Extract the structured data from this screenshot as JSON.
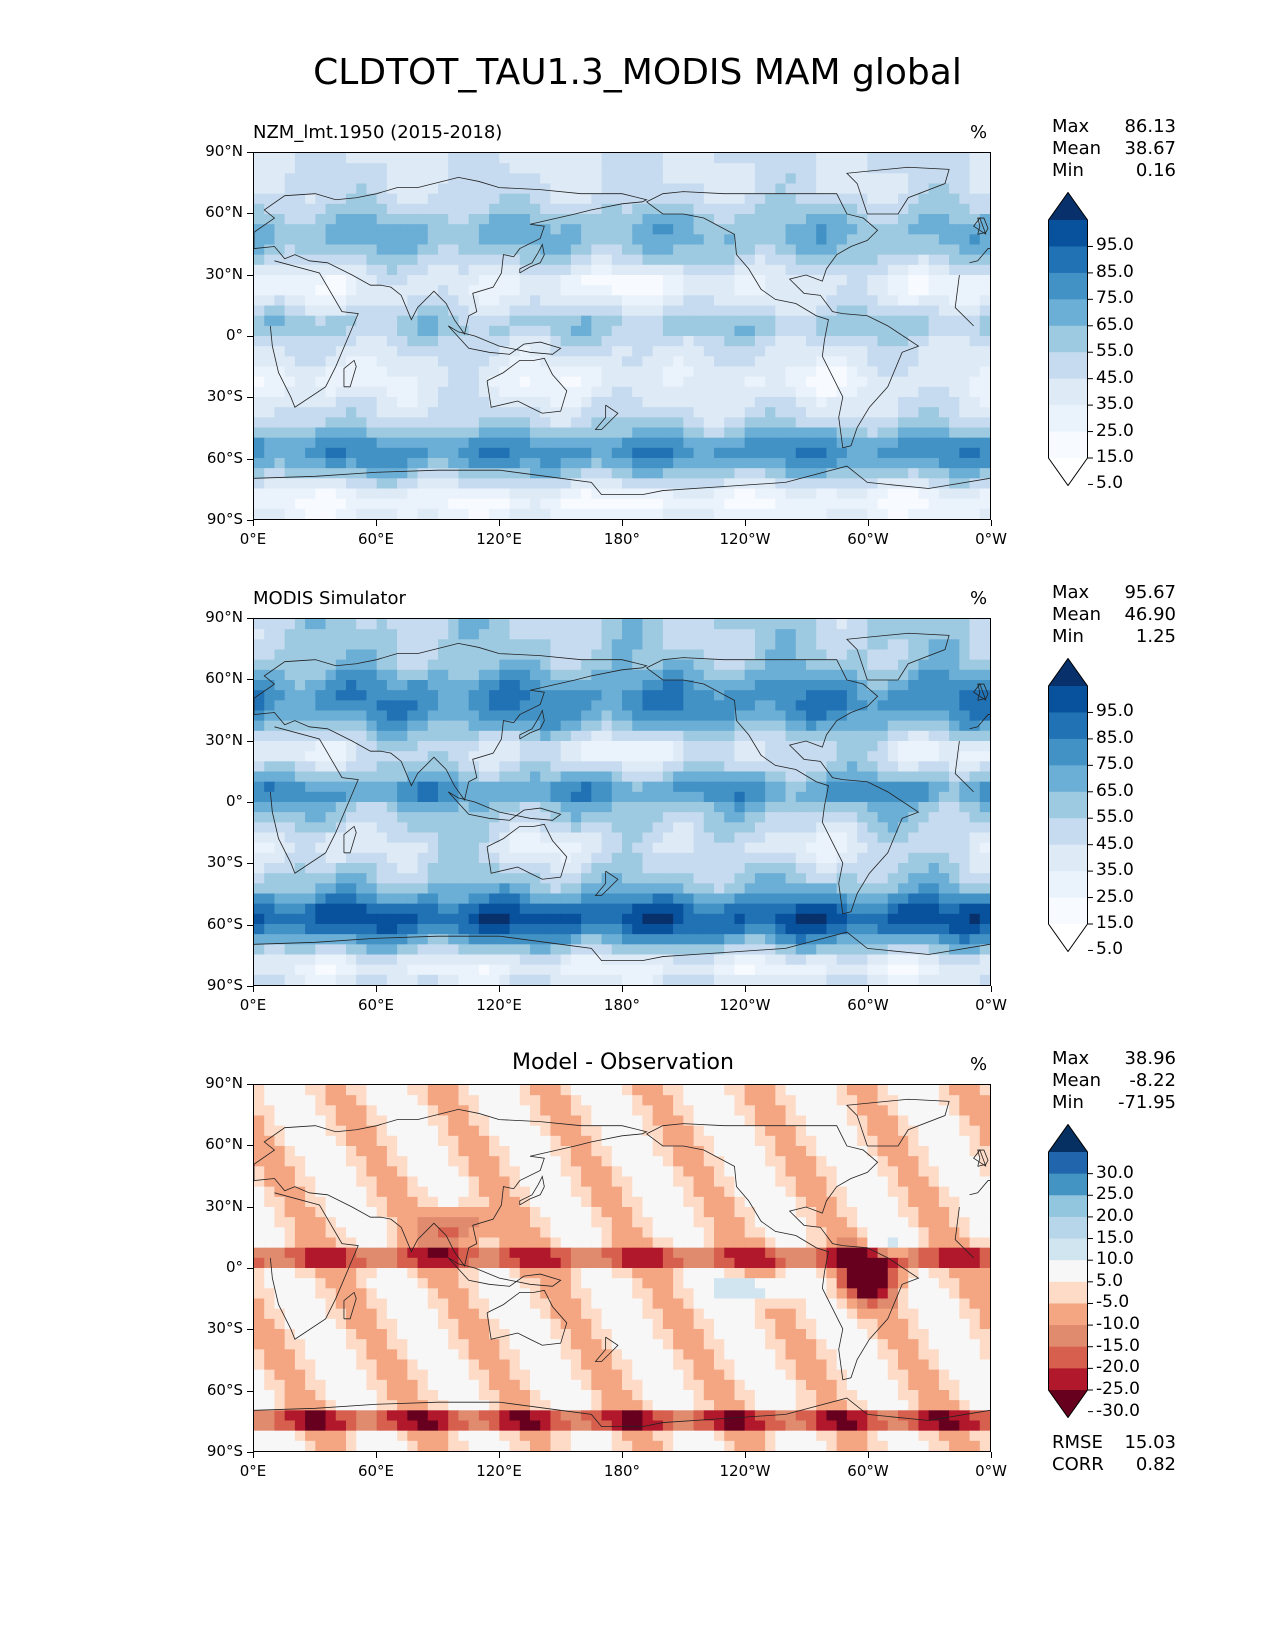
{
  "figure_title": "CLDTOT_TAU1.3_MODIS MAM global",
  "lat_ticks": [
    "90°N",
    "60°N",
    "30°N",
    "0°",
    "30°S",
    "60°S",
    "90°S"
  ],
  "lon_ticks": [
    "0°E",
    "60°E",
    "120°E",
    "180°",
    "120°W",
    "60°W",
    "0°W"
  ],
  "panels": [
    {
      "title": "NZM_lmt.1950 (2015-2018)",
      "unit": "%",
      "stats": {
        "max_label": "Max",
        "max": "86.13",
        "mean_label": "Mean",
        "mean": "38.67",
        "min_label": "Min",
        "min": "0.16"
      },
      "colorbar": {
        "labels": [
          "95.0",
          "85.0",
          "75.0",
          "65.0",
          "55.0",
          "45.0",
          "35.0",
          "25.0",
          "15.0",
          "5.0"
        ],
        "colors": [
          "#08306b",
          "#08519c",
          "#2171b5",
          "#4292c6",
          "#6baed6",
          "#9ecae1",
          "#c6dbef",
          "#deebf7",
          "#eaf2fb",
          "#f7fbff",
          "#ffffff"
        ]
      }
    },
    {
      "title": "MODIS Simulator",
      "unit": "%",
      "stats": {
        "max_label": "Max",
        "max": "95.67",
        "mean_label": "Mean",
        "mean": "46.90",
        "min_label": "Min",
        "min": "1.25"
      },
      "colorbar": {
        "labels": [
          "95.0",
          "85.0",
          "75.0",
          "65.0",
          "55.0",
          "45.0",
          "35.0",
          "25.0",
          "15.0",
          "5.0"
        ],
        "colors": [
          "#08306b",
          "#08519c",
          "#2171b5",
          "#4292c6",
          "#6baed6",
          "#9ecae1",
          "#c6dbef",
          "#deebf7",
          "#eaf2fb",
          "#f7fbff",
          "#ffffff"
        ]
      }
    },
    {
      "title": "Model - Observation",
      "unit": "%",
      "stats": {
        "max_label": "Max",
        "max": "38.96",
        "mean_label": "Mean",
        "mean": "-8.22",
        "min_label": "Min",
        "min": "-71.95"
      },
      "colorbar": {
        "labels": [
          "30.0",
          "25.0",
          "20.0",
          "15.0",
          "10.0",
          "5.0",
          "-5.0",
          "-10.0",
          "-15.0",
          "-20.0",
          "-25.0",
          "-30.0"
        ],
        "colors": [
          "#053061",
          "#2166ac",
          "#4393c3",
          "#92c5de",
          "#b7d6ea",
          "#d1e5f0",
          "#f7f7f7",
          "#fddbc7",
          "#f4a582",
          "#e08a6e",
          "#d6604d",
          "#b2182b",
          "#67001f"
        ]
      },
      "metrics": {
        "rmse_label": "RMSE",
        "rmse": "15.03",
        "corr_label": "CORR",
        "corr": "0.82"
      }
    }
  ]
}
